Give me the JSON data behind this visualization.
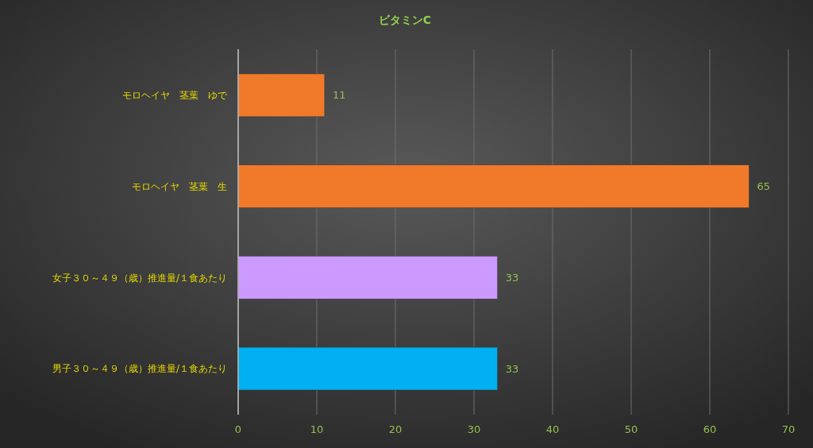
{
  "chart_data": {
    "type": "bar",
    "orientation": "horizontal",
    "title": "ビタミンC",
    "categories": [
      "モロヘイヤ　茎葉　ゆで",
      "モロヘイヤ　茎葉　生",
      "女子３０～４９（歳）推進量/１食あたり",
      "男子３０～４９（歳）推進量/１食あたり"
    ],
    "values": [
      11,
      65,
      33,
      33
    ],
    "colors": [
      "#f07a2a",
      "#f07a2a",
      "#cc99ff",
      "#00b0f0"
    ],
    "xlim": [
      0,
      70
    ],
    "xticks": [
      0,
      10,
      20,
      30,
      40,
      50,
      60,
      70
    ],
    "grid": "x",
    "data_labels": true
  }
}
